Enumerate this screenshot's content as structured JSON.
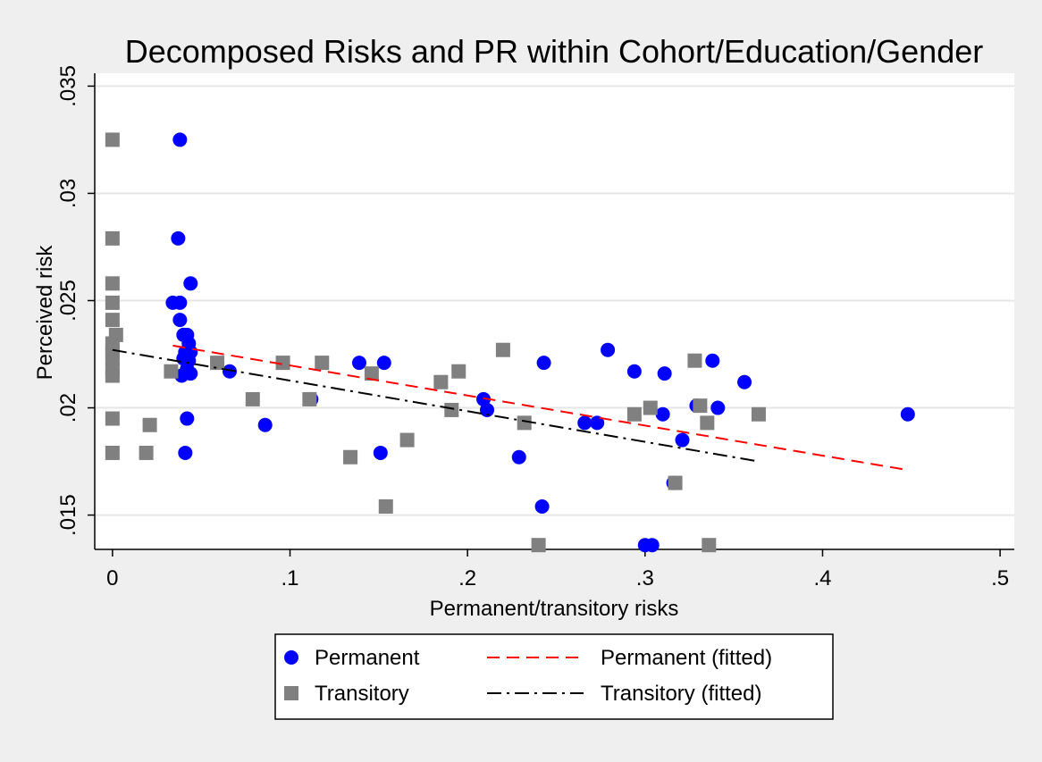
{
  "chart_data": {
    "type": "scatter",
    "title": "Decomposed Risks and PR within Cohort/Education/Gender",
    "xlabel": "Permanent/transitory risks",
    "ylabel": "Perceived risk",
    "xlim": [
      -0.01,
      0.508
    ],
    "ylim": [
      0.0134,
      0.0356
    ],
    "x_ticks": [
      0,
      0.1,
      0.2,
      0.3,
      0.4,
      0.5
    ],
    "x_tick_labels": [
      "0",
      ".1",
      ".2",
      ".3",
      ".4",
      ".5"
    ],
    "y_ticks": [
      0.015,
      0.02,
      0.025,
      0.03,
      0.035
    ],
    "y_tick_labels": [
      ".015",
      ".02",
      ".025",
      ".03",
      ".035"
    ],
    "grid": "horizontal",
    "legend_position": "bottom",
    "colors": {
      "background": "#efefef",
      "plot_background": "#ffffff",
      "permanent": "#0000ff",
      "transitory": "#808080",
      "permanent_fit": "#ff0000",
      "transitory_fit": "#000000"
    },
    "series": [
      {
        "name": "Permanent",
        "kind": "scatter",
        "marker": "circle",
        "color": "#0000ff",
        "points": [
          [
            0.038,
            0.0325
          ],
          [
            0.037,
            0.0279
          ],
          [
            0.034,
            0.0249
          ],
          [
            0.038,
            0.0249
          ],
          [
            0.044,
            0.0258
          ],
          [
            0.038,
            0.0241
          ],
          [
            0.04,
            0.0234
          ],
          [
            0.042,
            0.0234
          ],
          [
            0.043,
            0.023
          ],
          [
            0.041,
            0.0226
          ],
          [
            0.044,
            0.0226
          ],
          [
            0.04,
            0.0223
          ],
          [
            0.043,
            0.0222
          ],
          [
            0.042,
            0.0218
          ],
          [
            0.044,
            0.0216
          ],
          [
            0.039,
            0.0215
          ],
          [
            0.042,
            0.0195
          ],
          [
            0.041,
            0.0179
          ],
          [
            0.066,
            0.0217
          ],
          [
            0.086,
            0.0192
          ],
          [
            0.112,
            0.0204
          ],
          [
            0.139,
            0.0221
          ],
          [
            0.153,
            0.0221
          ],
          [
            0.151,
            0.0179
          ],
          [
            0.209,
            0.0204
          ],
          [
            0.211,
            0.0199
          ],
          [
            0.229,
            0.0177
          ],
          [
            0.242,
            0.0154
          ],
          [
            0.243,
            0.0221
          ],
          [
            0.266,
            0.0193
          ],
          [
            0.273,
            0.0193
          ],
          [
            0.279,
            0.0227
          ],
          [
            0.294,
            0.0217
          ],
          [
            0.3,
            0.0136
          ],
          [
            0.304,
            0.0136
          ],
          [
            0.31,
            0.0197
          ],
          [
            0.311,
            0.0216
          ],
          [
            0.316,
            0.0165
          ],
          [
            0.321,
            0.0185
          ],
          [
            0.329,
            0.0201
          ],
          [
            0.338,
            0.0222
          ],
          [
            0.341,
            0.02
          ],
          [
            0.356,
            0.0212
          ],
          [
            0.448,
            0.0197
          ]
        ]
      },
      {
        "name": "Transitory",
        "kind": "scatter",
        "marker": "square",
        "color": "#808080",
        "points": [
          [
            0.0,
            0.0325
          ],
          [
            0.0,
            0.0279
          ],
          [
            0.0,
            0.0258
          ],
          [
            0.0,
            0.0249
          ],
          [
            0.0,
            0.0241
          ],
          [
            0.002,
            0.0234
          ],
          [
            0.0,
            0.023
          ],
          [
            0.0,
            0.0226
          ],
          [
            0.0,
            0.0223
          ],
          [
            0.0,
            0.0218
          ],
          [
            0.0,
            0.0215
          ],
          [
            0.0,
            0.0195
          ],
          [
            0.0,
            0.0179
          ],
          [
            0.019,
            0.0179
          ],
          [
            0.021,
            0.0192
          ],
          [
            0.033,
            0.0217
          ],
          [
            0.059,
            0.0221
          ],
          [
            0.079,
            0.0204
          ],
          [
            0.096,
            0.0221
          ],
          [
            0.111,
            0.0204
          ],
          [
            0.118,
            0.0221
          ],
          [
            0.134,
            0.0177
          ],
          [
            0.146,
            0.0216
          ],
          [
            0.154,
            0.0154
          ],
          [
            0.166,
            0.0185
          ],
          [
            0.185,
            0.0212
          ],
          [
            0.191,
            0.0199
          ],
          [
            0.195,
            0.0217
          ],
          [
            0.22,
            0.0227
          ],
          [
            0.232,
            0.0193
          ],
          [
            0.24,
            0.0136
          ],
          [
            0.294,
            0.0197
          ],
          [
            0.303,
            0.02
          ],
          [
            0.317,
            0.0165
          ],
          [
            0.328,
            0.0222
          ],
          [
            0.331,
            0.0201
          ],
          [
            0.335,
            0.0193
          ],
          [
            0.336,
            0.0136
          ],
          [
            0.364,
            0.0197
          ]
        ]
      },
      {
        "name": "Permanent (fitted)",
        "kind": "line",
        "dash": "dashed",
        "color": "#ff0000",
        "points": [
          [
            0.034,
            0.0229
          ],
          [
            0.448,
            0.0171
          ]
        ]
      },
      {
        "name": "Transitory (fitted)",
        "kind": "line",
        "dash": "dash-dot",
        "color": "#000000",
        "points": [
          [
            0.0,
            0.0227
          ],
          [
            0.364,
            0.0175
          ]
        ]
      }
    ]
  }
}
